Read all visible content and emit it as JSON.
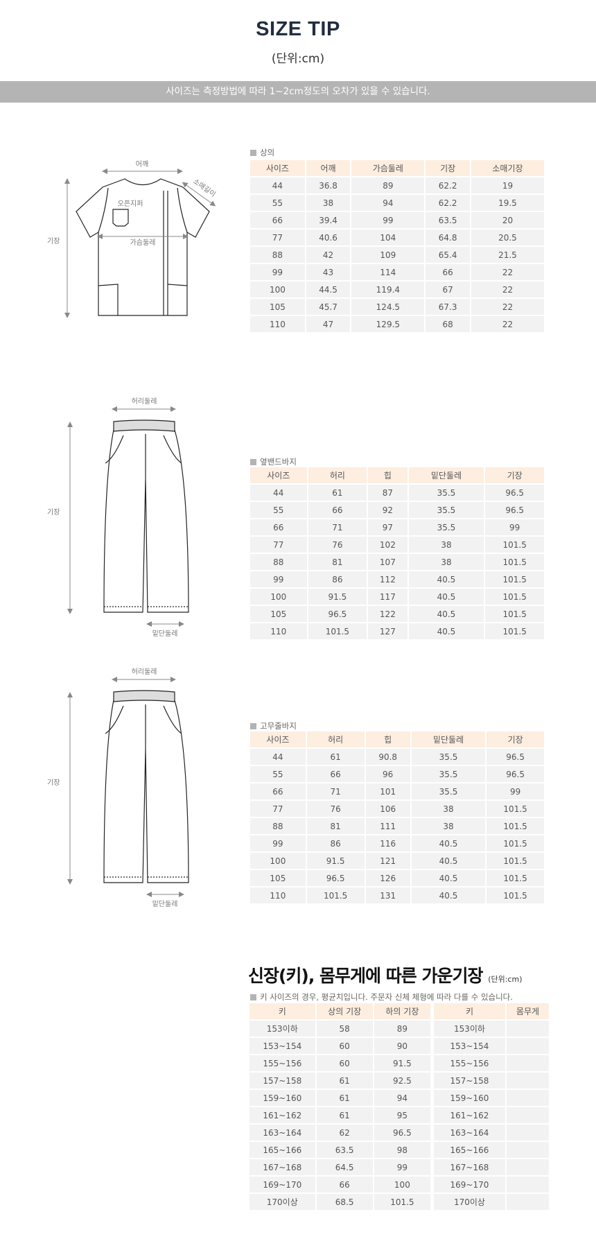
{
  "header": {
    "title": "SIZE TIP",
    "unit": "(단위:cm)",
    "notice": "사이즈는 측정방법에 따라 1~2cm정도의 오차가 있을 수 있습니다."
  },
  "top": {
    "label": "상의",
    "diagram": {
      "shoulder": "어깨",
      "sleeve": "소매길이",
      "zipper": "오픈지퍼",
      "chest": "가슴둘레",
      "length": "기장"
    },
    "headers": [
      "사이즈",
      "어깨",
      "가슴둘레",
      "기장",
      "소매기장"
    ],
    "rows": [
      [
        "44",
        "36.8",
        "89",
        "62.2",
        "19"
      ],
      [
        "55",
        "38",
        "94",
        "62.2",
        "19.5"
      ],
      [
        "66",
        "39.4",
        "99",
        "63.5",
        "20"
      ],
      [
        "77",
        "40.6",
        "104",
        "64.8",
        "20.5"
      ],
      [
        "88",
        "42",
        "109",
        "65.4",
        "21.5"
      ],
      [
        "99",
        "43",
        "114",
        "66",
        "22"
      ],
      [
        "100",
        "44.5",
        "119.4",
        "67",
        "22"
      ],
      [
        "105",
        "45.7",
        "124.5",
        "67.3",
        "22"
      ],
      [
        "110",
        "47",
        "129.5",
        "68",
        "22"
      ]
    ]
  },
  "pants1": {
    "label": "옆밴드바지",
    "diagram": {
      "waist": "허리둘레",
      "length": "기장",
      "hem": "밑단둘레"
    },
    "headers": [
      "사이즈",
      "허리",
      "힙",
      "밑단둘레",
      "기장"
    ],
    "rows": [
      [
        "44",
        "61",
        "87",
        "35.5",
        "96.5"
      ],
      [
        "55",
        "66",
        "92",
        "35.5",
        "96.5"
      ],
      [
        "66",
        "71",
        "97",
        "35.5",
        "99"
      ],
      [
        "77",
        "76",
        "102",
        "38",
        "101.5"
      ],
      [
        "88",
        "81",
        "107",
        "38",
        "101.5"
      ],
      [
        "99",
        "86",
        "112",
        "40.5",
        "101.5"
      ],
      [
        "100",
        "91.5",
        "117",
        "40.5",
        "101.5"
      ],
      [
        "105",
        "96.5",
        "122",
        "40.5",
        "101.5"
      ],
      [
        "110",
        "101.5",
        "127",
        "40.5",
        "101.5"
      ]
    ]
  },
  "pants2": {
    "label": "고무줄바지",
    "diagram": {
      "waist": "허리둘레",
      "length": "기장",
      "hem": "밑단둘레"
    },
    "headers": [
      "사이즈",
      "허리",
      "힙",
      "밑단둘레",
      "기장"
    ],
    "rows": [
      [
        "44",
        "61",
        "90.8",
        "35.5",
        "96.5"
      ],
      [
        "55",
        "66",
        "96",
        "35.5",
        "96.5"
      ],
      [
        "66",
        "71",
        "101",
        "35.5",
        "99"
      ],
      [
        "77",
        "76",
        "106",
        "38",
        "101.5"
      ],
      [
        "88",
        "81",
        "111",
        "38",
        "101.5"
      ],
      [
        "99",
        "86",
        "116",
        "40.5",
        "101.5"
      ],
      [
        "100",
        "91.5",
        "121",
        "40.5",
        "101.5"
      ],
      [
        "105",
        "96.5",
        "126",
        "40.5",
        "101.5"
      ],
      [
        "110",
        "101.5",
        "131",
        "40.5",
        "101.5"
      ]
    ]
  },
  "height": {
    "title": "신장(키), 몸무게에 따른 가운기장",
    "unit": "(단위:cm)",
    "note": "키 사이즈의 경우, 평균치입니다. 주문자 신체 체형에 따라 다를 수 있습니다.",
    "headers": [
      "키",
      "상의 기장",
      "하의 기장"
    ],
    "rows": [
      [
        "153이하",
        "58",
        "89"
      ],
      [
        "153~154",
        "60",
        "90"
      ],
      [
        "155~156",
        "60",
        "91.5"
      ],
      [
        "157~158",
        "61",
        "92.5"
      ],
      [
        "159~160",
        "61",
        "94"
      ],
      [
        "161~162",
        "61",
        "95"
      ],
      [
        "163~164",
        "62",
        "96.5"
      ],
      [
        "165~166",
        "63.5",
        "98"
      ],
      [
        "167~168",
        "64.5",
        "99"
      ],
      [
        "169~170",
        "66",
        "100"
      ],
      [
        "170이상",
        "68.5",
        "101.5"
      ]
    ],
    "weight_headers": [
      "키",
      "몸무게"
    ],
    "weight_rows": [
      [
        "153이하",
        ""
      ],
      [
        "153~154",
        ""
      ],
      [
        "155~156",
        ""
      ],
      [
        "157~158",
        ""
      ],
      [
        "159~160",
        ""
      ],
      [
        "161~162",
        ""
      ],
      [
        "163~164",
        ""
      ],
      [
        "165~166",
        ""
      ],
      [
        "167~168",
        ""
      ],
      [
        "169~170",
        ""
      ],
      [
        "170이상",
        ""
      ]
    ]
  },
  "colors": {
    "header_bg": "#fdeee0",
    "cell_bg": "#f2f2f2",
    "notice_bg": "#b5b4b4",
    "title": "#222d40"
  }
}
